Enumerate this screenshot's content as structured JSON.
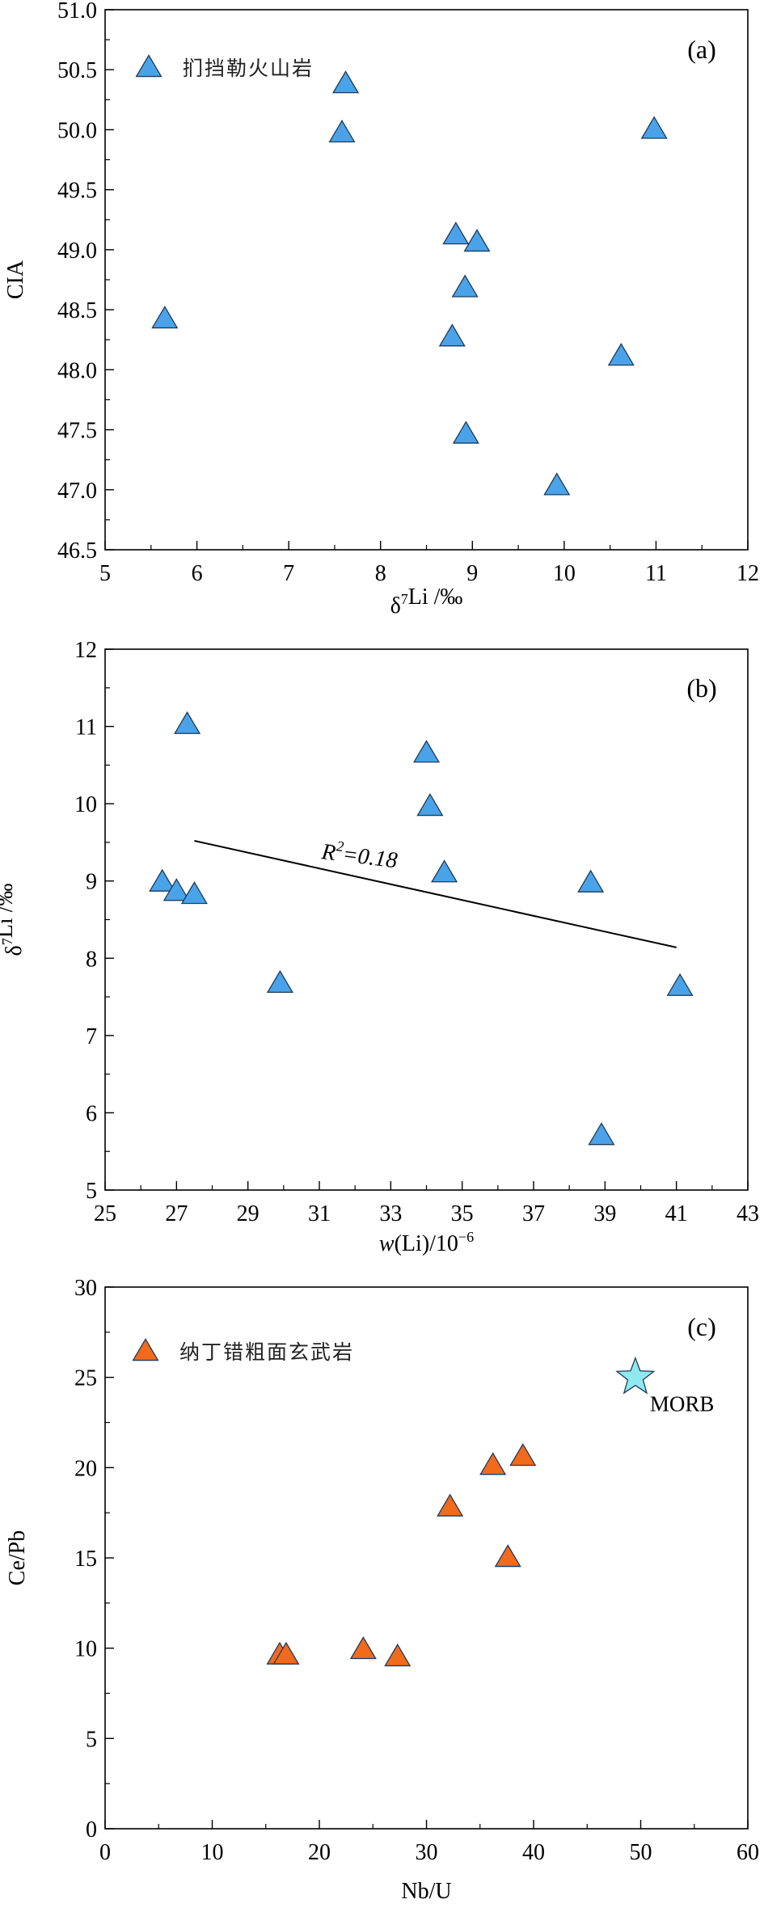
{
  "chart_data": [
    {
      "id": "a",
      "type": "scatter",
      "panel_label": "(a)",
      "xlabel_html": "δ<sup>7</sup>Li /‰",
      "ylabel": "CIA",
      "xlim": [
        5,
        12
      ],
      "ylim": [
        46.5,
        51.0
      ],
      "xticks": [
        5,
        6,
        7,
        8,
        9,
        10,
        11,
        12
      ],
      "yticks": [
        46.5,
        47.0,
        47.5,
        48.0,
        48.5,
        49.0,
        49.5,
        50.0,
        50.5,
        51.0
      ],
      "ytick_decimals": 1,
      "minor_x": true,
      "minor_y": true,
      "legend": {
        "position": "top-left",
        "label": "扪挡勒火山岩"
      },
      "series": [
        {
          "name": "扪挡勒火山岩",
          "marker": "triangle",
          "color": "#4aa3e8",
          "x": [
            5.65,
            7.58,
            7.62,
            8.78,
            8.82,
            8.92,
            9.05,
            8.93,
            9.92,
            10.62,
            10.98
          ],
          "y": [
            48.42,
            49.97,
            50.38,
            48.27,
            49.12,
            48.68,
            49.06,
            47.46,
            47.03,
            48.11,
            50.0
          ]
        }
      ]
    },
    {
      "id": "b",
      "type": "scatter",
      "panel_label": "(b)",
      "xlabel_html": "<i>w</i>(Li)/10<sup>−6</sup>",
      "ylabel_html": "δ<sup>7</sup>Li /‰",
      "xlim": [
        25,
        43
      ],
      "ylim": [
        5,
        12
      ],
      "xticks": [
        25,
        27,
        29,
        31,
        33,
        35,
        37,
        39,
        41,
        43
      ],
      "yticks": [
        5,
        6,
        7,
        8,
        9,
        10,
        11,
        12
      ],
      "ytick_decimals": 0,
      "minor_x": true,
      "minor_y": true,
      "series": [
        {
          "marker": "triangle",
          "color": "#4aa3e8",
          "x": [
            26.6,
            27.0,
            27.3,
            27.5,
            29.9,
            34.0,
            34.1,
            34.5,
            38.6,
            38.9,
            41.1
          ],
          "y": [
            8.98,
            8.86,
            11.02,
            8.82,
            7.67,
            10.65,
            9.96,
            9.1,
            8.97,
            5.7,
            7.63
          ]
        }
      ],
      "trendline": {
        "x": [
          27.5,
          41.0
        ],
        "y": [
          9.52,
          8.14
        ]
      },
      "annotation_html": "<tspan font-style=\"italic\">R</tspan><tspan dy=\"-12\" font-size=\"18\">2</tspan><tspan dy=\"12\">=0.18</tspan>"
    },
    {
      "id": "c",
      "type": "scatter",
      "panel_label": "(c)",
      "xlabel": "Nb/U",
      "ylabel": "Ce/Pb",
      "xlim": [
        0,
        60
      ],
      "ylim": [
        0,
        30
      ],
      "xticks": [
        0,
        10,
        20,
        30,
        40,
        50,
        60
      ],
      "yticks": [
        0,
        5,
        10,
        15,
        20,
        25,
        30
      ],
      "ytick_decimals": 0,
      "minor_x": true,
      "minor_y": true,
      "legend": {
        "position": "top-left",
        "label": "纳丁错粗面玄武岩"
      },
      "series": [
        {
          "name": "纳丁错粗面玄武岩",
          "marker": "triangle",
          "color": "#f26a1b",
          "x": [
            16.3,
            16.9,
            24.1,
            27.3,
            32.2,
            36.2,
            37.6,
            39.0
          ],
          "y": [
            9.6,
            9.6,
            9.9,
            9.5,
            17.8,
            20.1,
            15.0,
            20.6
          ]
        },
        {
          "name": "MORB",
          "marker": "star",
          "color": "#8fe9ef",
          "x": [
            49.5
          ],
          "y": [
            25.0
          ],
          "point_label": "MORB"
        }
      ]
    }
  ]
}
